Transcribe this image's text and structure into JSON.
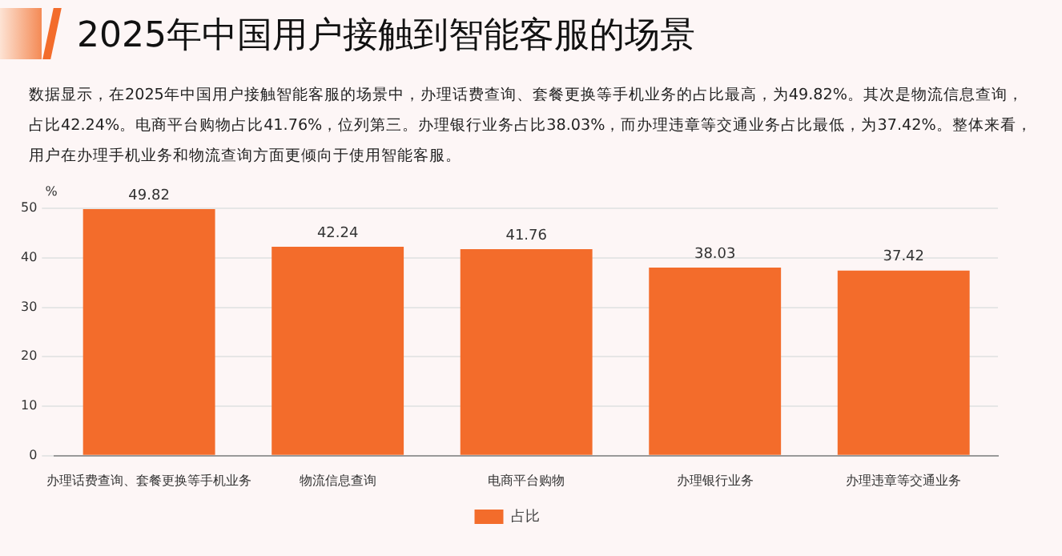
{
  "chart_data": {
    "type": "bar",
    "title": "2025年中国用户接触到智能客服的场景",
    "subtitle": "数据显示，在2025年中国用户接触智能客服的场景中，办理话费查询、套餐更换等手机业务的占比最高，为49.82%。其次是物流信息查询，占比42.24%。电商平台购物占比41.76%，位列第三。办理银行业务占比38.03%，而办理违章等交通业务占比最低，为37.42%。整体来看，用户在办理手机业务和物流查询方面更倾向于使用智能客服。",
    "ylabel": "%",
    "categories": [
      "办理话费查询、套餐更换等手机业务",
      "物流信息查询",
      "电商平台购物",
      "办理银行业务",
      "办理违章等交通业务"
    ],
    "series": [
      {
        "name": "占比",
        "color": "#f36c2b",
        "values": [
          49.82,
          42.24,
          41.76,
          38.03,
          37.42
        ]
      }
    ],
    "ylim": [
      0,
      50
    ],
    "yticks": [
      0,
      10,
      20,
      30,
      40,
      50
    ],
    "grid": "y",
    "legend": "bottom",
    "data_labels": true
  }
}
